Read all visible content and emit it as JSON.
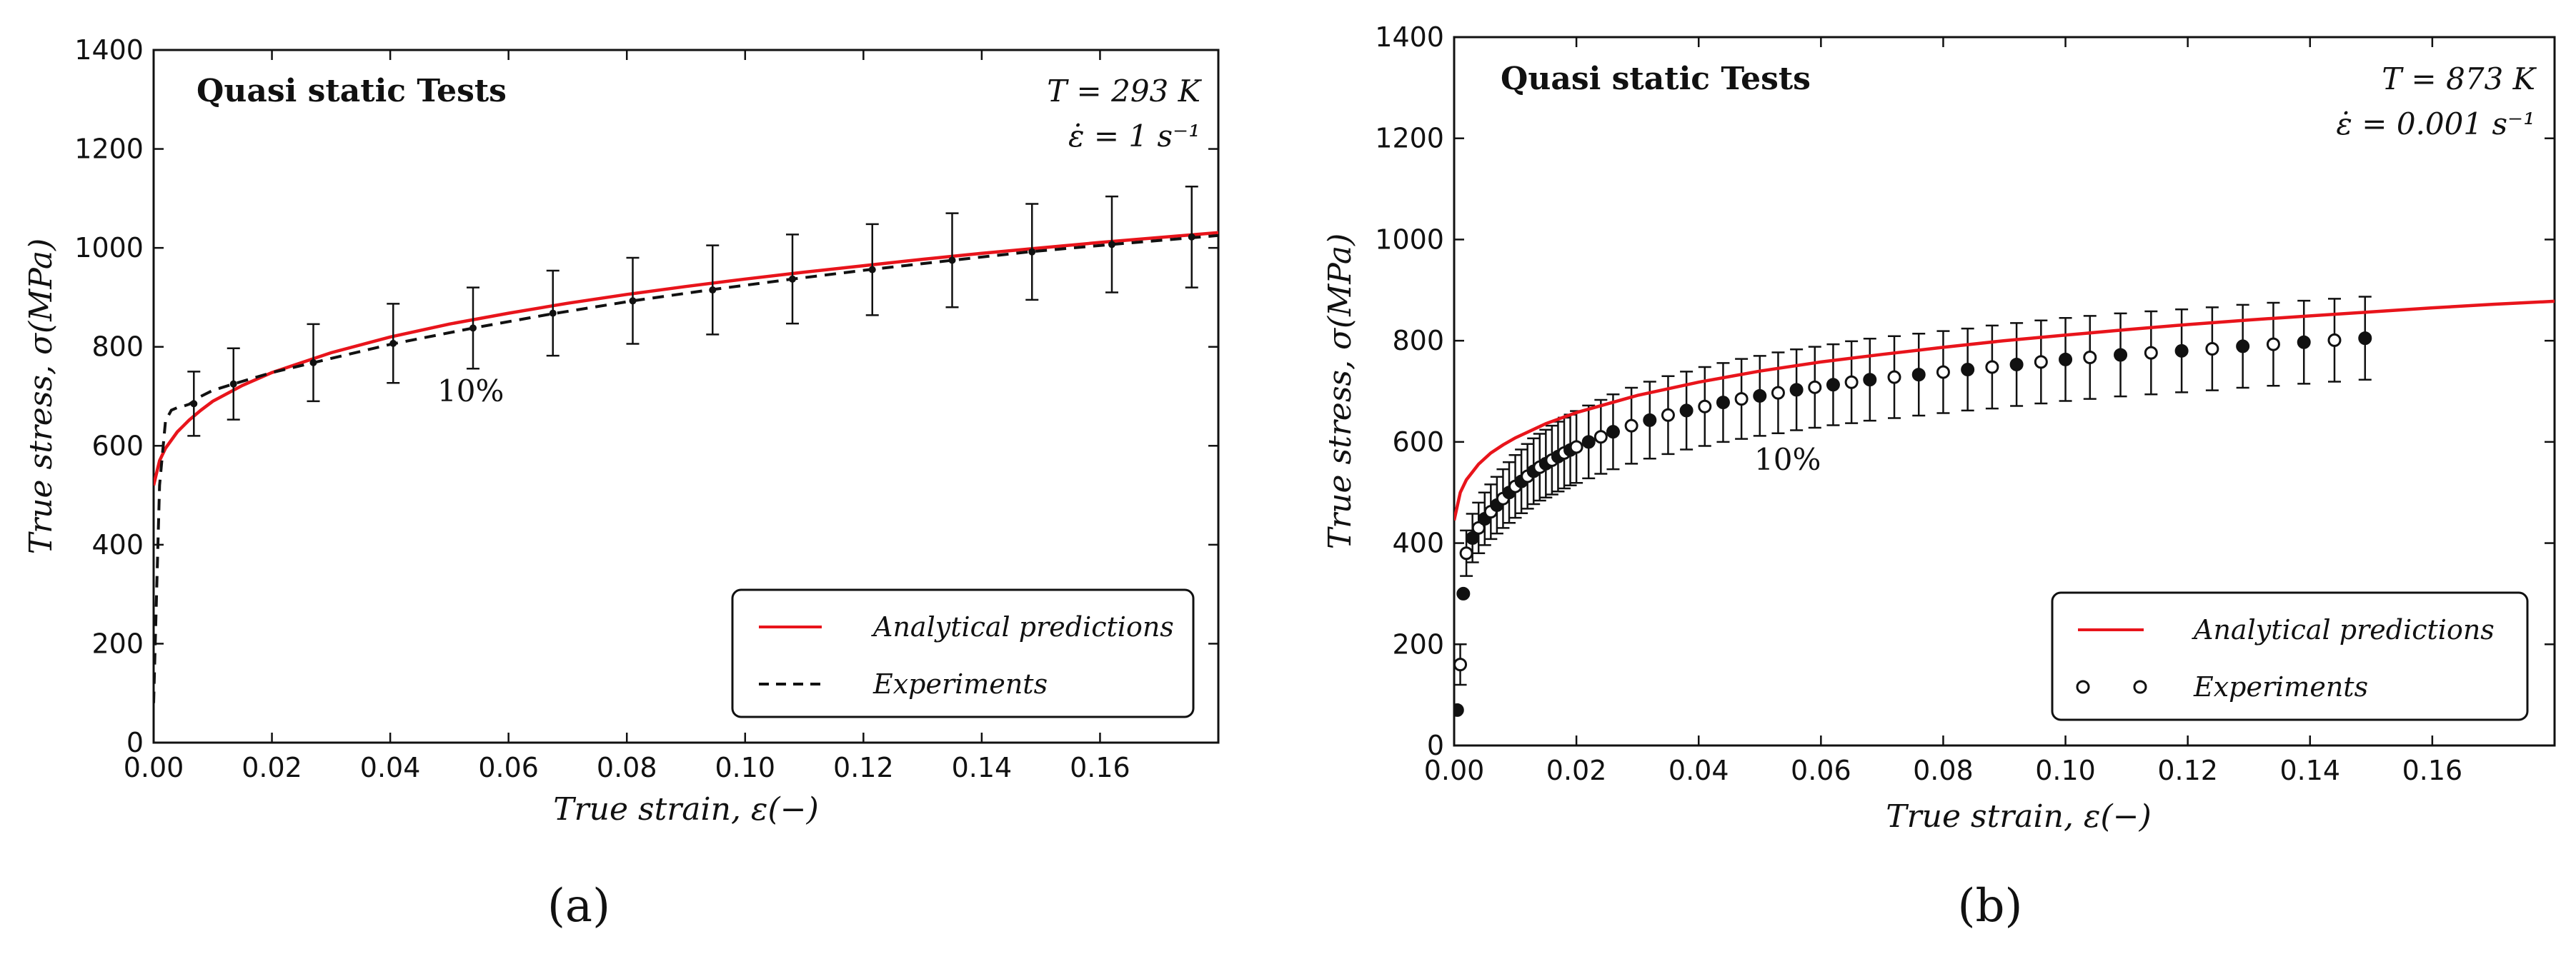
{
  "chart_data": [
    {
      "type": "line",
      "title": "Quasi static Tests",
      "params": [
        "T = 293 K",
        "ε̇ = 1 s⁻¹"
      ],
      "xlabel": "True strain, ε(−)",
      "ylabel": "True stress, σ(MPa)",
      "xlim": [
        0,
        0.18
      ],
      "ylim": [
        0,
        1400
      ],
      "xticks": [
        "0.00",
        "0.02",
        "0.04",
        "0.06",
        "0.08",
        "0.10",
        "0.12",
        "0.14",
        "0.16"
      ],
      "yticks": [
        "0",
        "200",
        "400",
        "600",
        "800",
        "1000",
        "1200",
        "1400"
      ],
      "annotation": "10%",
      "panel_label": "(a)",
      "legend_position": "lower-right",
      "grid": false,
      "series": [
        {
          "name": "Analytical predictions",
          "color": "#e8141b",
          "style": "solid",
          "x": [
            0.0,
            0.001,
            0.002,
            0.004,
            0.006,
            0.008,
            0.01,
            0.015,
            0.02,
            0.03,
            0.04,
            0.05,
            0.06,
            0.07,
            0.08,
            0.09,
            0.1,
            0.11,
            0.12,
            0.13,
            0.14,
            0.15,
            0.16,
            0.17,
            0.18
          ],
          "y": [
            520,
            570,
            595,
            628,
            652,
            672,
            690,
            722,
            748,
            788,
            820,
            846,
            868,
            888,
            906,
            922,
            937,
            951,
            964,
            977,
            989,
            1000,
            1011,
            1021,
            1031
          ]
        },
        {
          "name": "Experiments",
          "color": "#111111",
          "style": "dashed",
          "x": [
            0.0,
            0.0005,
            0.001,
            0.002,
            0.003,
            0.004,
            0.005,
            0.006,
            0.008,
            0.01,
            0.0135,
            0.02,
            0.027,
            0.04,
            0.054,
            0.067,
            0.081,
            0.094,
            0.108,
            0.121,
            0.135,
            0.148,
            0.162,
            0.175,
            0.18
          ],
          "y": [
            80,
            300,
            520,
            650,
            672,
            677,
            680,
            684,
            700,
            712,
            725,
            748,
            768,
            805,
            838,
            866,
            893,
            915,
            937,
            956,
            975,
            992,
            1007,
            1020,
            1025
          ]
        }
      ],
      "error_bars": {
        "x": [
          0.0068,
          0.0135,
          0.027,
          0.0405,
          0.054,
          0.0675,
          0.081,
          0.0945,
          0.108,
          0.1215,
          0.135,
          0.1485,
          0.162,
          0.1755
        ],
        "y": [
          685,
          725,
          768,
          807,
          838,
          868,
          893,
          915,
          937,
          956,
          975,
          992,
          1007,
          1022
        ],
        "err": [
          65,
          72,
          78,
          80,
          82,
          86,
          87,
          90,
          90,
          92,
          95,
          97,
          97,
          102
        ]
      }
    },
    {
      "type": "scatter",
      "title": "Quasi static Tests",
      "params": [
        "T = 873 K",
        "ε̇ = 0.001 s⁻¹"
      ],
      "xlabel": "True strain, ε(−)",
      "ylabel": "True stress, σ(MPa)",
      "xlim": [
        0,
        0.18
      ],
      "ylim": [
        0,
        1400
      ],
      "xticks": [
        "0.00",
        "0.02",
        "0.04",
        "0.06",
        "0.08",
        "0.10",
        "0.12",
        "0.14",
        "0.16"
      ],
      "yticks": [
        "0",
        "200",
        "400",
        "600",
        "800",
        "1000",
        "1200",
        "1400"
      ],
      "annotation": "10%",
      "panel_label": "(b)",
      "legend_position": "lower-right",
      "grid": false,
      "series": [
        {
          "name": "Analytical predictions",
          "color": "#e8141b",
          "style": "solid",
          "x": [
            0.0,
            0.001,
            0.002,
            0.004,
            0.006,
            0.008,
            0.01,
            0.015,
            0.02,
            0.03,
            0.04,
            0.05,
            0.06,
            0.07,
            0.08,
            0.09,
            0.1,
            0.11,
            0.12,
            0.13,
            0.14,
            0.15,
            0.16,
            0.17,
            0.18
          ],
          "y": [
            445,
            500,
            525,
            556,
            578,
            594,
            608,
            636,
            658,
            692,
            718,
            740,
            758,
            773,
            787,
            800,
            811,
            822,
            832,
            841,
            849,
            857,
            865,
            872,
            878
          ]
        },
        {
          "name": "Experiments",
          "color": "#111111",
          "style": "markers",
          "x": [
            0.0005,
            0.001,
            0.0015,
            0.002,
            0.003,
            0.004,
            0.005,
            0.006,
            0.007,
            0.008,
            0.009,
            0.01,
            0.011,
            0.012,
            0.013,
            0.014,
            0.015,
            0.016,
            0.017,
            0.018,
            0.019,
            0.02,
            0.022,
            0.024,
            0.026,
            0.029,
            0.032,
            0.035,
            0.038,
            0.041,
            0.044,
            0.047,
            0.05,
            0.053,
            0.056,
            0.059,
            0.062,
            0.065,
            0.068,
            0.072,
            0.076,
            0.08,
            0.084,
            0.088,
            0.092,
            0.096,
            0.1,
            0.104,
            0.109,
            0.114,
            0.119,
            0.124,
            0.129,
            0.134,
            0.139,
            0.144,
            0.149
          ],
          "y": [
            70,
            160,
            300,
            380,
            410,
            430,
            448,
            462,
            475,
            488,
            500,
            512,
            522,
            532,
            542,
            550,
            557,
            564,
            571,
            578,
            584,
            590,
            600,
            610,
            620,
            632,
            643,
            653,
            662,
            670,
            678,
            685,
            691,
            697,
            703,
            708,
            713,
            718,
            723,
            728,
            733,
            738,
            743,
            748,
            753,
            758,
            763,
            767,
            772,
            776,
            780,
            784,
            789,
            793,
            797,
            801,
            805
          ]
        }
      ],
      "error_bars": {
        "x": [
          0.001,
          0.002,
          0.003,
          0.004,
          0.005,
          0.006,
          0.007,
          0.008,
          0.009,
          0.01,
          0.011,
          0.012,
          0.013,
          0.014,
          0.015,
          0.016,
          0.017,
          0.018,
          0.019,
          0.02,
          0.022,
          0.024,
          0.026,
          0.029,
          0.032,
          0.035,
          0.038,
          0.041,
          0.044,
          0.047,
          0.05,
          0.053,
          0.056,
          0.059,
          0.062,
          0.065,
          0.068,
          0.072,
          0.076,
          0.08,
          0.084,
          0.088,
          0.092,
          0.096,
          0.1,
          0.104,
          0.109,
          0.114,
          0.119,
          0.124,
          0.129,
          0.134,
          0.139,
          0.144,
          0.149
        ],
        "y": [
          160,
          380,
          410,
          430,
          448,
          462,
          475,
          488,
          500,
          512,
          522,
          532,
          542,
          550,
          557,
          564,
          571,
          578,
          584,
          590,
          600,
          610,
          620,
          632,
          643,
          653,
          662,
          670,
          678,
          685,
          691,
          697,
          703,
          708,
          713,
          718,
          723,
          728,
          733,
          738,
          743,
          748,
          753,
          758,
          763,
          767,
          772,
          776,
          780,
          784,
          789,
          793,
          797,
          801,
          805
        ],
        "err": [
          40,
          45,
          48,
          50,
          52,
          54,
          56,
          58,
          60,
          62,
          63,
          64,
          65,
          66,
          67,
          68,
          69,
          70,
          70,
          71,
          72,
          73,
          74,
          75,
          76,
          77,
          77,
          78,
          78,
          79,
          79,
          80,
          80,
          80,
          80,
          81,
          81,
          81,
          81,
          81,
          81,
          82,
          82,
          82,
          82,
          82,
          82,
          82,
          82,
          82,
          82,
          82,
          82,
          82,
          82
        ]
      }
    }
  ]
}
